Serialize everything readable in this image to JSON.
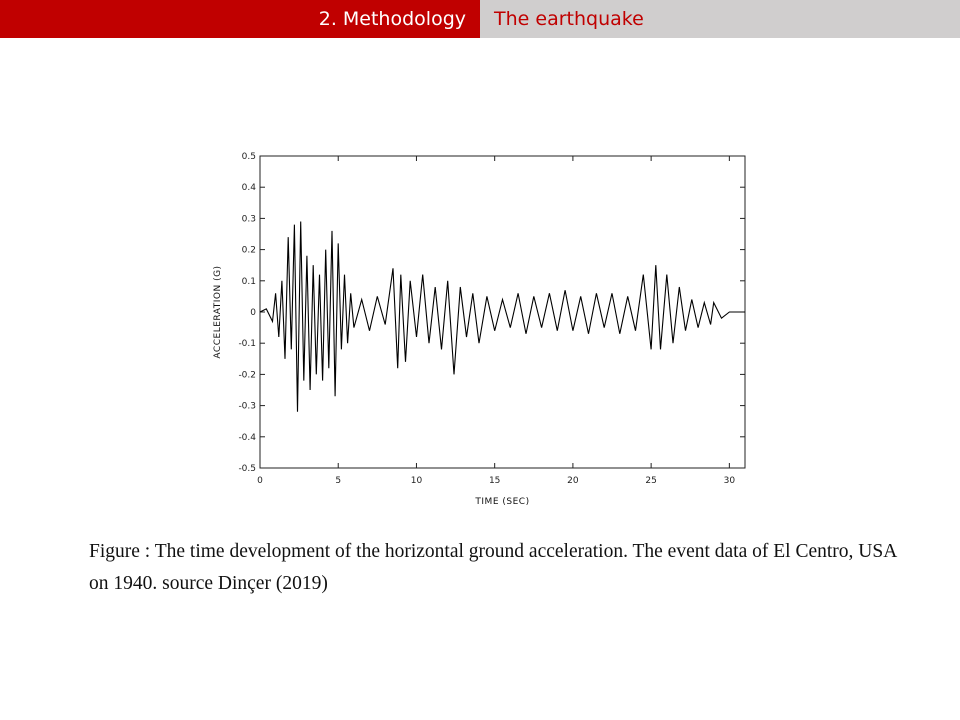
{
  "header": {
    "section": "2. Methodology",
    "topic": "The earthquake"
  },
  "caption": {
    "text": "Figure   : The time development of the horizontal ground acceleration.  The event data of El Centro, USA on 1940.  source Dinçer (2019)"
  },
  "chart_data": {
    "type": "line",
    "title": "",
    "xlabel": "TIME (SEC)",
    "ylabel": "ACCELERATION (G)",
    "xlim": [
      0,
      31
    ],
    "ylim": [
      -0.5,
      0.5
    ],
    "x_ticks": [
      0,
      5,
      10,
      15,
      20,
      25,
      30
    ],
    "y_ticks": [
      0.5,
      0.4,
      0.3,
      0.2,
      0.1,
      0,
      -0.1,
      -0.2,
      -0.3,
      -0.4,
      -0.5
    ],
    "x_tick_labels": [
      "0",
      "5",
      "10",
      "15",
      "20",
      "25",
      "30"
    ],
    "y_tick_labels": [
      "0.5",
      "0.4",
      "0.3",
      "0.2",
      "0.1",
      "0",
      "-0.1",
      "-0.2",
      "-0.3",
      "-0.4",
      "-0.5"
    ],
    "grid": false,
    "series": [
      {
        "color": "#000000",
        "x": [
          0,
          0.4,
          0.8,
          1.0,
          1.2,
          1.4,
          1.6,
          1.8,
          2.0,
          2.2,
          2.4,
          2.6,
          2.8,
          3.0,
          3.2,
          3.4,
          3.6,
          3.8,
          4.0,
          4.2,
          4.4,
          4.6,
          4.8,
          5.0,
          5.2,
          5.4,
          5.6,
          5.8,
          6.0,
          6.5,
          7.0,
          7.5,
          8.0,
          8.5,
          8.8,
          9.0,
          9.3,
          9.6,
          10.0,
          10.4,
          10.8,
          11.2,
          11.6,
          12.0,
          12.4,
          12.8,
          13.2,
          13.6,
          14.0,
          14.5,
          15.0,
          15.5,
          16.0,
          16.5,
          17.0,
          17.5,
          18.0,
          18.5,
          19.0,
          19.5,
          20.0,
          20.5,
          21.0,
          21.5,
          22.0,
          22.5,
          23.0,
          23.5,
          24.0,
          24.5,
          25.0,
          25.3,
          25.6,
          26.0,
          26.4,
          26.8,
          27.2,
          27.6,
          28.0,
          28.4,
          28.8,
          29.0,
          29.5,
          30.0,
          31.0
        ],
        "y": [
          0.0,
          0.01,
          -0.03,
          0.06,
          -0.08,
          0.1,
          -0.15,
          0.24,
          -0.12,
          0.28,
          -0.32,
          0.29,
          -0.22,
          0.18,
          -0.25,
          0.15,
          -0.2,
          0.12,
          -0.22,
          0.2,
          -0.18,
          0.26,
          -0.27,
          0.22,
          -0.12,
          0.12,
          -0.1,
          0.06,
          -0.05,
          0.04,
          -0.06,
          0.05,
          -0.04,
          0.14,
          -0.18,
          0.12,
          -0.16,
          0.1,
          -0.08,
          0.12,
          -0.1,
          0.08,
          -0.12,
          0.1,
          -0.2,
          0.08,
          -0.08,
          0.06,
          -0.1,
          0.05,
          -0.06,
          0.04,
          -0.05,
          0.06,
          -0.07,
          0.05,
          -0.05,
          0.06,
          -0.06,
          0.07,
          -0.06,
          0.05,
          -0.07,
          0.06,
          -0.05,
          0.06,
          -0.07,
          0.05,
          -0.06,
          0.12,
          -0.12,
          0.15,
          -0.12,
          0.12,
          -0.1,
          0.08,
          -0.06,
          0.04,
          -0.05,
          0.03,
          -0.04,
          0.03,
          -0.02,
          0.0,
          0.0
        ]
      }
    ]
  }
}
